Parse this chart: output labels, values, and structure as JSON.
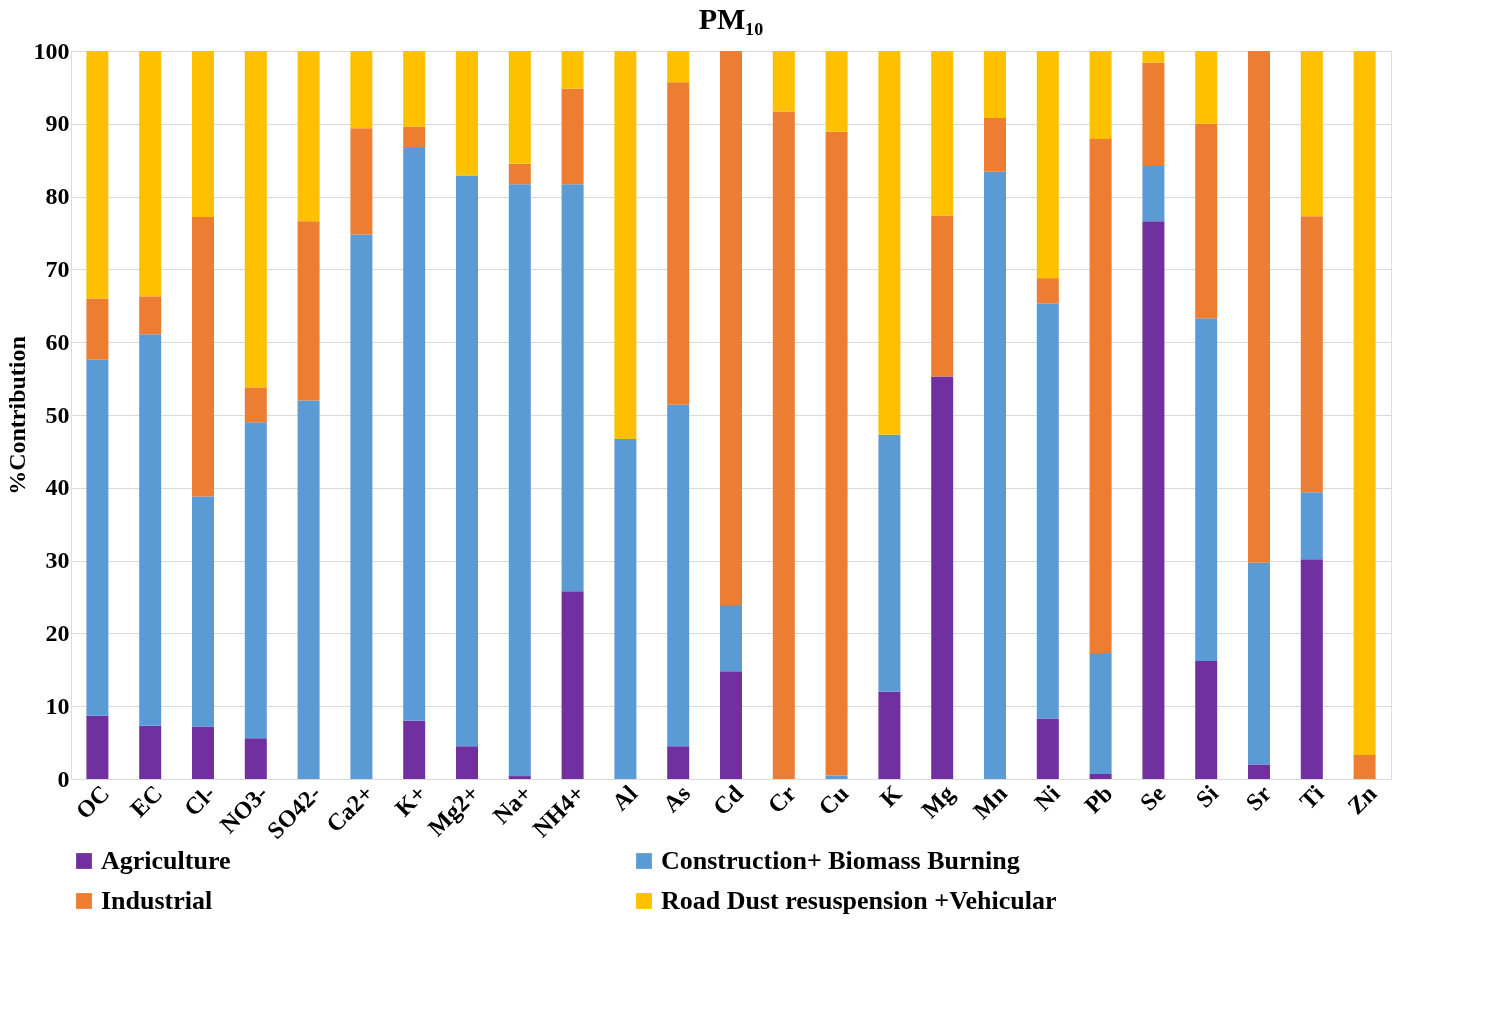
{
  "chart_data": {
    "type": "bar",
    "title": "PM₁₀",
    "ylabel": "%Contribution",
    "stacked": true,
    "categories": [
      "OC",
      "EC",
      "Cl-",
      "NO3-",
      "SO42-",
      "Ca2+",
      "K+",
      "Mg2+",
      "Na+",
      "NH4+",
      "Al",
      "As",
      "Cd",
      "Cr",
      "Cu",
      "K",
      "Mg",
      "Mn",
      "Ni",
      "Pb",
      "Se",
      "Si",
      "Sr",
      "Ti",
      "Zn"
    ],
    "series": [
      {
        "name": "Agriculture",
        "color": "#7030a0",
        "values": [
          8.7,
          7.3,
          7.2,
          5.6,
          0,
          0,
          8.0,
          4.5,
          0.4,
          25.8,
          0,
          4.5,
          14.8,
          0,
          0,
          12.0,
          55.3,
          0,
          8.3,
          0.7,
          76.6,
          16.2,
          2.0,
          30.2,
          0
        ]
      },
      {
        "name": "Construction+ Biomass Burning",
        "color": "#5b9bd5",
        "values": [
          48.9,
          53.8,
          31.6,
          43.4,
          52.0,
          74.8,
          78.8,
          78.4,
          81.3,
          55.9,
          46.7,
          46.9,
          9.1,
          0,
          0.5,
          35.3,
          0,
          83.4,
          57.0,
          16.6,
          7.6,
          47.1,
          27.7,
          9.2,
          0
        ]
      },
      {
        "name": "Industrial",
        "color": "#ed7d31",
        "values": [
          8.4,
          5.2,
          38.4,
          4.8,
          24.6,
          14.6,
          2.8,
          0,
          2.8,
          13.1,
          0,
          44.3,
          76.1,
          91.7,
          88.4,
          0,
          22.1,
          7.4,
          3.5,
          70.6,
          14.2,
          26.7,
          70.3,
          37.9,
          3.3
        ]
      },
      {
        "name": "Road Dust resuspension +Vehicular",
        "color": "#ffc000",
        "values": [
          34.0,
          33.7,
          22.8,
          46.2,
          23.4,
          10.6,
          10.4,
          17.1,
          15.5,
          5.2,
          53.3,
          4.3,
          0,
          8.3,
          11.1,
          52.7,
          22.6,
          9.2,
          31.2,
          12.1,
          1.6,
          10.0,
          0,
          22.7,
          96.7
        ]
      }
    ],
    "ylim": [
      0,
      100
    ],
    "yticks": [
      0,
      10,
      20,
      30,
      40,
      50,
      60,
      70,
      80,
      90,
      100
    ],
    "grid": "y",
    "legend": "bottom"
  }
}
